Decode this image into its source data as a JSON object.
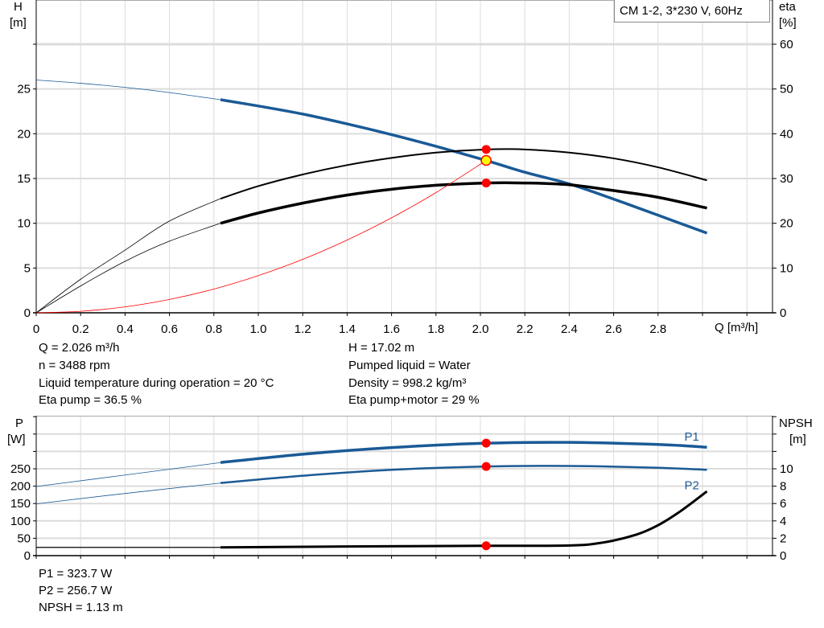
{
  "legend_box": "CM 1-2, 3*230 V, 60Hz",
  "info_top": {
    "left": [
      "Q = 2.026 m³/h",
      "n = 3488 rpm",
      "Liquid temperature during operation = 20 °C",
      "Eta pump = 36.5 %"
    ],
    "right": [
      "H = 17.02 m",
      "Pumped liquid = Water",
      "Density = 998.2 kg/m³",
      "Eta pump+motor = 29 %"
    ]
  },
  "info_bottom": [
    "P1 = 323.7 W",
    "P2 = 256.7 W",
    "NPSH = 1.13 m"
  ],
  "colors": {
    "head": "#1a5a96",
    "eta": "#000000",
    "system": "#ff0000",
    "power": "#1a5a96",
    "npsh": "#000000",
    "marker": "#ff0000",
    "duty_point": "#ffff00",
    "grid": "#dcdcdc"
  },
  "chart_data": [
    {
      "type": "line",
      "xlabel": "Q [m³/h]",
      "ylabel_left": [
        "H",
        "[m]"
      ],
      "ylabel_right": [
        "eta",
        "[%]"
      ],
      "xlim": [
        0,
        3.3
      ],
      "ylim_left": [
        0,
        30
      ],
      "ylim_right": [
        0,
        60
      ],
      "x_ticks": [
        "0",
        "0.2",
        "0.4",
        "0.6",
        "0.8",
        "1.0",
        "1.2",
        "1.4",
        "1.6",
        "1.8",
        "2.0",
        "2.2",
        "2.4",
        "2.6",
        "2.8"
      ],
      "y_ticks_left": [
        "0",
        "5",
        "10",
        "15",
        "20",
        "25"
      ],
      "y_ticks_right": [
        "0",
        "10",
        "20",
        "30",
        "40",
        "50",
        "60"
      ],
      "grid": true,
      "operating_range": [
        0.83,
        3.02
      ],
      "series": [
        {
          "id": "head",
          "axis": "left",
          "points": [
            [
              0,
              26
            ],
            [
              0.2,
              25.64
            ],
            [
              0.4,
              25.18
            ],
            [
              0.6,
              24.6
            ],
            [
              0.83,
              23.8
            ],
            [
              1.0,
              23.1
            ],
            [
              1.2,
              22.2
            ],
            [
              1.4,
              21.1
            ],
            [
              1.6,
              19.9
            ],
            [
              1.8,
              18.6
            ],
            [
              2.026,
              17.02
            ],
            [
              2.2,
              15.7
            ],
            [
              2.4,
              14.4
            ],
            [
              2.6,
              12.7
            ],
            [
              2.8,
              10.9
            ],
            [
              3.02,
              8.9
            ]
          ]
        },
        {
          "id": "eta-pump",
          "axis": "right",
          "points": [
            [
              0,
              0
            ],
            [
              0.2,
              7.5
            ],
            [
              0.4,
              14
            ],
            [
              0.6,
              20.5
            ],
            [
              0.83,
              25.5
            ],
            [
              1.0,
              28.3
            ],
            [
              1.2,
              30.9
            ],
            [
              1.4,
              33
            ],
            [
              1.6,
              34.6
            ],
            [
              1.8,
              35.8
            ],
            [
              2.026,
              36.5
            ],
            [
              2.2,
              36.5
            ],
            [
              2.4,
              35.8
            ],
            [
              2.6,
              34.5
            ],
            [
              2.8,
              32.5
            ],
            [
              3.02,
              29.6
            ]
          ]
        },
        {
          "id": "eta-pump-motor",
          "axis": "right",
          "points": [
            [
              0,
              0
            ],
            [
              0.2,
              6
            ],
            [
              0.4,
              11.5
            ],
            [
              0.6,
              16
            ],
            [
              0.83,
              20
            ],
            [
              1.0,
              22.3
            ],
            [
              1.2,
              24.5
            ],
            [
              1.4,
              26.3
            ],
            [
              1.6,
              27.6
            ],
            [
              1.8,
              28.5
            ],
            [
              2.026,
              29
            ],
            [
              2.2,
              29
            ],
            [
              2.4,
              28.6
            ],
            [
              2.6,
              27.3
            ],
            [
              2.8,
              25.8
            ],
            [
              3.02,
              23.4
            ]
          ]
        },
        {
          "id": "system-curve",
          "axis": "left",
          "points": [
            [
              0,
              0
            ],
            [
              0.2,
              0.17
            ],
            [
              0.4,
              0.66
            ],
            [
              0.6,
              1.49
            ],
            [
              0.8,
              2.65
            ],
            [
              1.0,
              4.15
            ],
            [
              1.2,
              5.97
            ],
            [
              1.4,
              8.13
            ],
            [
              1.6,
              10.61
            ],
            [
              1.8,
              13.43
            ],
            [
              2.026,
              17.02
            ]
          ]
        }
      ],
      "markers": [
        {
          "id": "eta-pump-point",
          "axis": "right",
          "x": 2.026,
          "y": 36.5
        },
        {
          "id": "eta-total-point",
          "axis": "right",
          "x": 2.026,
          "y": 29
        },
        {
          "id": "duty-point",
          "axis": "left",
          "x": 2.026,
          "y": 17.02
        }
      ]
    },
    {
      "type": "line",
      "ylabel_left": [
        "P",
        "[W]"
      ],
      "ylabel_right": [
        "NPSH",
        "[m]"
      ],
      "xlim": [
        0,
        3.3
      ],
      "ylim_left": [
        0,
        400
      ],
      "ylim_right": [
        0,
        16
      ],
      "y_ticks_left": [
        "0",
        "50",
        "100",
        "150",
        "200",
        "250"
      ],
      "y_ticks_right": [
        "0",
        "2",
        "4",
        "6",
        "8",
        "10"
      ],
      "grid": true,
      "operating_range": [
        0.83,
        3.02
      ],
      "series": [
        {
          "id": "p1",
          "name": "P1",
          "axis": "left",
          "points": [
            [
              0,
              199
            ],
            [
              0.4,
              232
            ],
            [
              0.83,
              268
            ],
            [
              1.2,
              292
            ],
            [
              1.6,
              311
            ],
            [
              2.026,
              323.7
            ],
            [
              2.4,
              326
            ],
            [
              2.8,
              320
            ],
            [
              3.02,
              312
            ]
          ]
        },
        {
          "id": "p2",
          "name": "P2",
          "axis": "left",
          "points": [
            [
              0,
              149
            ],
            [
              0.4,
              179
            ],
            [
              0.83,
              209
            ],
            [
              1.2,
              230
            ],
            [
              1.6,
              247
            ],
            [
              2.026,
              256.7
            ],
            [
              2.4,
              258
            ],
            [
              2.8,
              253
            ],
            [
              3.02,
              247
            ]
          ]
        },
        {
          "id": "npsh",
          "axis": "right",
          "points": [
            [
              0,
              0.95
            ],
            [
              0.83,
              0.95
            ],
            [
              1.4,
              1.05
            ],
            [
              2.026,
              1.13
            ],
            [
              2.4,
              1.17
            ],
            [
              2.55,
              1.5
            ],
            [
              2.7,
              2.4
            ],
            [
              2.8,
              3.5
            ],
            [
              2.9,
              5.1
            ],
            [
              3.02,
              7.4
            ]
          ]
        }
      ],
      "markers": [
        {
          "id": "p1-point",
          "axis": "left",
          "x": 2.026,
          "y": 323.7
        },
        {
          "id": "p2-point",
          "axis": "left",
          "x": 2.026,
          "y": 256.7
        },
        {
          "id": "npsh-point",
          "axis": "right",
          "x": 2.026,
          "y": 1.13
        }
      ]
    }
  ]
}
